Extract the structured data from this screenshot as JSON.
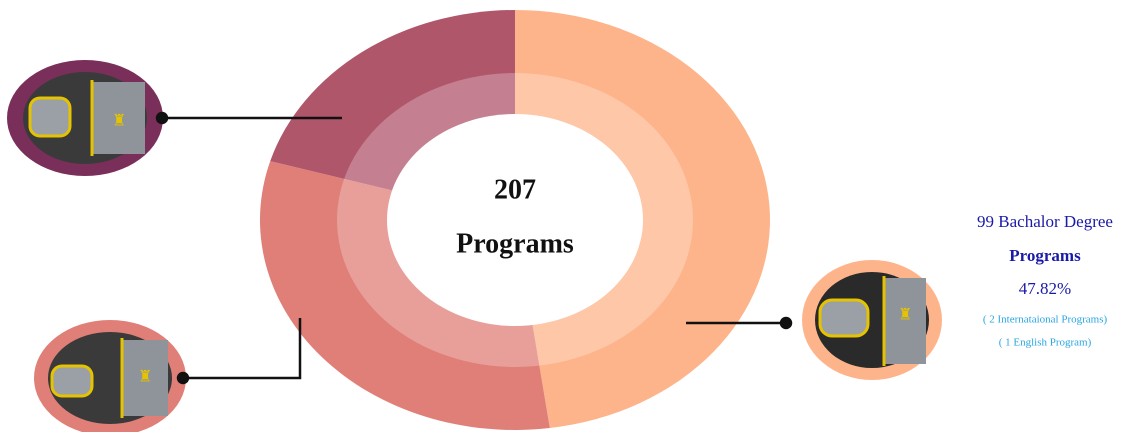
{
  "chart_data": {
    "type": "donut",
    "center_text": [
      "207",
      "Programs"
    ],
    "values": [
      47.82,
      31.7,
      20.48
    ],
    "value_labels": [
      "47.82%",
      null,
      null
    ],
    "colors": [
      "#fdb48b",
      "#e07f78",
      "#b0566b"
    ],
    "annotation": {
      "title": [
        "99 Bachalor Degree",
        "Programs"
      ],
      "notes": [
        "( 2 Internataional Programs)",
        "( 1 English Program)"
      ]
    }
  }
}
